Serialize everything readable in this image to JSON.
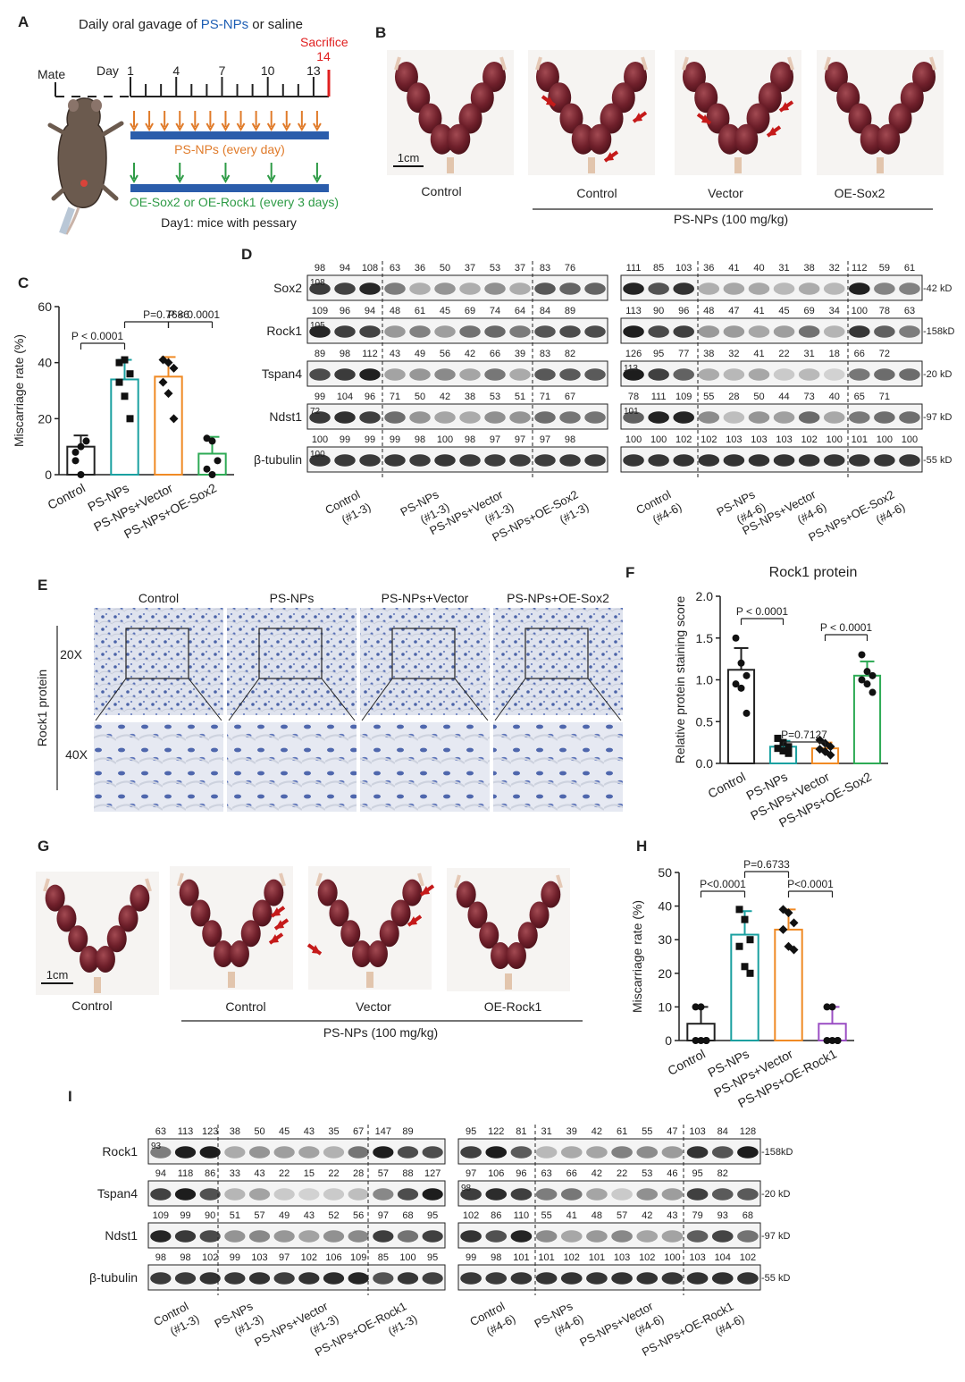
{
  "panel_letters": [
    "A",
    "B",
    "C",
    "D",
    "E",
    "F",
    "G",
    "H",
    "I"
  ],
  "panel_a": {
    "title_prefix": "Daily oral gavage of ",
    "title_drug": "PS-NPs",
    "title_suffix": " or saline",
    "sacrifice": "Sacrifice",
    "sacrifice_day": "14",
    "mate": "Mate",
    "day_label": "Day",
    "day_ticks": [
      "1",
      "4",
      "7",
      "10",
      "13"
    ],
    "bar1_label": "PS-NPs (every day)",
    "bar2_label": "OE-Sox2 or OE-Rock1 (every 3 days)",
    "note": "Day1: mice with pessary",
    "colors": {
      "drug": "#1f5fb4",
      "orange": "#e07b2a",
      "green": "#2e9b46",
      "red": "#e02020",
      "bar": "#2b5dab"
    }
  },
  "panel_b": {
    "scale_bar": "1cm",
    "labels": [
      "Control",
      "Control",
      "Vector",
      "OE-Sox2"
    ],
    "group_label": "PS-NPs (100 mg/kg)"
  },
  "panel_g": {
    "scale_bar": "1cm",
    "labels": [
      "Control",
      "Control",
      "Vector",
      "OE-Rock1"
    ],
    "group_label": "PS-NPs (100 mg/kg)"
  },
  "chart_data": [
    {
      "panel": "C",
      "type": "bar",
      "ylabel": "Miscarriage rate (%)",
      "categories": [
        "Control",
        "PS-NPs",
        "PS-NPs+Vector",
        "PS-NPs+OE-Sox2"
      ],
      "values": [
        10,
        34,
        35,
        7.5
      ],
      "errors": [
        4,
        7,
        7,
        6
      ],
      "ylim": [
        0,
        60
      ],
      "yticks": [
        0,
        20,
        40,
        60
      ],
      "colors": [
        "#222222",
        "#1aa0a0",
        "#f08a24",
        "#2eaa55"
      ],
      "points": [
        [
          8,
          10,
          12,
          5,
          0
        ],
        [
          40,
          41,
          36,
          33,
          28,
          20
        ],
        [
          41,
          40,
          38,
          33,
          29,
          20
        ],
        [
          13,
          12,
          5,
          2,
          0
        ]
      ],
      "comparisons": [
        {
          "a": 0,
          "b": 1,
          "label": "P < 0.0001"
        },
        {
          "a": 1,
          "b": 2,
          "label": "P=0.7686"
        },
        {
          "a": 2,
          "b": 3,
          "label": "P < 0.0001"
        }
      ]
    },
    {
      "panel": "F",
      "type": "bar",
      "title": "Rock1 protein",
      "ylabel": "Relative protein staining score",
      "categories": [
        "Control",
        "PS-NPs",
        "PS-NPs+Vector",
        "PS-NPs+OE-Sox2"
      ],
      "values": [
        1.12,
        0.2,
        0.18,
        1.05
      ],
      "errors": [
        0.26,
        0.07,
        0.07,
        0.17
      ],
      "ylim": [
        0,
        2.0
      ],
      "yticks": [
        0.0,
        0.5,
        1.0,
        1.5,
        2.0
      ],
      "colors": [
        "#222222",
        "#1aa0a0",
        "#f08a24",
        "#2eaa55"
      ],
      "points": [
        [
          1.5,
          1.2,
          1.05,
          0.95,
          0.9,
          0.6
        ],
        [
          0.3,
          0.25,
          0.2,
          0.18,
          0.15,
          0.12
        ],
        [
          0.28,
          0.24,
          0.2,
          0.17,
          0.14,
          0.1
        ],
        [
          1.3,
          1.1,
          1.05,
          1.0,
          0.95,
          0.85
        ]
      ],
      "comparisons": [
        {
          "a": 0,
          "b": 1,
          "label": "P < 0.0001"
        },
        {
          "a": 1,
          "b": 2,
          "label": "P=0.7127"
        },
        {
          "a": 2,
          "b": 3,
          "label": "P < 0.0001"
        }
      ]
    },
    {
      "panel": "H",
      "type": "bar",
      "ylabel": "Miscarriage rate (%)",
      "categories": [
        "Control",
        "PS-NPs",
        "PS-NPs+Vector",
        "PS-NPs+OE-Rock1"
      ],
      "values": [
        5,
        31.5,
        33,
        5
      ],
      "errors": [
        5,
        7,
        6,
        5
      ],
      "ylim": [
        0,
        50
      ],
      "yticks": [
        0,
        10,
        20,
        30,
        40,
        50
      ],
      "colors": [
        "#222222",
        "#1aa0a0",
        "#f08a24",
        "#9b4fc4"
      ],
      "points": [
        [
          10,
          10,
          0,
          0,
          0,
          0
        ],
        [
          39,
          36,
          30,
          28,
          22,
          20
        ],
        [
          39,
          38,
          35,
          33,
          28,
          27
        ],
        [
          10,
          10,
          0,
          0,
          0,
          0
        ]
      ],
      "comparisons": [
        {
          "a": 0,
          "b": 1,
          "label": "P<0.0001"
        },
        {
          "a": 1,
          "b": 2,
          "label": "P=0.6733"
        },
        {
          "a": 2,
          "b": 3,
          "label": "P<0.0001"
        }
      ]
    }
  ],
  "panel_d": {
    "rows": [
      {
        "name": "Sox2",
        "kd": "-42 kD",
        "left": [
          "98",
          "94",
          "108",
          "63",
          "36",
          "50",
          "37",
          "53",
          "37",
          "83",
          "76"
        ],
        "right": [
          "111",
          "85",
          "103",
          "36",
          "41",
          "40",
          "31",
          "38",
          "32",
          "112",
          "59",
          "61"
        ],
        "marker_left": "108",
        "marker_right": ""
      },
      {
        "name": "Rock1",
        "kd": "-158kD",
        "left": [
          "109",
          "96",
          "94",
          "48",
          "61",
          "45",
          "69",
          "74",
          "64",
          "84",
          "89"
        ],
        "right": [
          "113",
          "90",
          "96",
          "48",
          "47",
          "41",
          "45",
          "69",
          "34",
          "100",
          "78",
          "63"
        ],
        "marker_left": "105",
        "marker_right": ""
      },
      {
        "name": "Tspan4",
        "kd": "-20 kD",
        "left": [
          "89",
          "98",
          "112",
          "43",
          "49",
          "56",
          "42",
          "66",
          "39",
          "83",
          "82"
        ],
        "right": [
          "126",
          "95",
          "77",
          "38",
          "32",
          "41",
          "22",
          "31",
          "18",
          "66",
          "72"
        ],
        "marker_left": "",
        "marker_right": "113"
      },
      {
        "name": "Ndst1",
        "kd": "-97 kD",
        "left": [
          "99",
          "104",
          "96",
          "71",
          "50",
          "42",
          "38",
          "53",
          "51",
          "71",
          "67"
        ],
        "right": [
          "78",
          "111",
          "109",
          "55",
          "28",
          "50",
          "44",
          "73",
          "40",
          "65",
          "71"
        ],
        "marker_left": "72",
        "marker_right": "101"
      },
      {
        "name": "β-tubulin",
        "kd": "-55 kD",
        "left": [
          "100",
          "99",
          "99",
          "99",
          "98",
          "100",
          "98",
          "97",
          "97",
          "97",
          "98"
        ],
        "right": [
          "100",
          "100",
          "102",
          "102",
          "103",
          "103",
          "103",
          "102",
          "100",
          "101",
          "100",
          "100"
        ],
        "marker_left": "100",
        "marker_right": ""
      }
    ],
    "groups_left": [
      [
        "Control",
        "(#1-3)"
      ],
      [
        "PS-NPs",
        "(#1-3)"
      ],
      [
        "PS-NPs+Vector",
        "(#1-3)"
      ],
      [
        "PS-NPs+OE-Sox2",
        "(#1-3)"
      ]
    ],
    "groups_right": [
      [
        "Control",
        "(#4-6)"
      ],
      [
        "PS-NPs",
        "(#4-6)"
      ],
      [
        "PS-NPs+Vector",
        "(#4-6)"
      ],
      [
        "PS-NPs+OE-Sox2",
        "(#4-6)"
      ]
    ]
  },
  "panel_e": {
    "columns": [
      "Control",
      "PS-NPs",
      "PS-NPs+Vector",
      "PS-NPs+OE-Sox2"
    ],
    "row_labels": [
      "20X",
      "40X"
    ],
    "side_label": "Rock1 protein"
  },
  "panel_i": {
    "rows": [
      {
        "name": "Rock1",
        "kd": "-158kD",
        "left": [
          "63",
          "113",
          "123",
          "38",
          "50",
          "45",
          "43",
          "35",
          "67",
          "147",
          "89"
        ],
        "right": [
          "95",
          "122",
          "81",
          "31",
          "39",
          "42",
          "61",
          "55",
          "47",
          "103",
          "84",
          "128"
        ],
        "marker_left": "93",
        "marker_right": ""
      },
      {
        "name": "Tspan4",
        "kd": "-20 kD",
        "left": [
          "94",
          "118",
          "86",
          "33",
          "43",
          "22",
          "15",
          "22",
          "28",
          "57",
          "88",
          "127"
        ],
        "right": [
          "97",
          "106",
          "96",
          "63",
          "66",
          "42",
          "22",
          "53",
          "46",
          "95",
          "82"
        ],
        "marker_left": "",
        "marker_right": "98"
      },
      {
        "name": "Ndst1",
        "kd": "-97 kD",
        "left": [
          "109",
          "99",
          "90",
          "51",
          "57",
          "49",
          "43",
          "52",
          "56",
          "97",
          "68",
          "95"
        ],
        "right": [
          "102",
          "86",
          "110",
          "55",
          "41",
          "48",
          "57",
          "42",
          "43",
          "79",
          "93",
          "68"
        ],
        "marker_left": "",
        "marker_right": ""
      },
      {
        "name": "β-tubulin",
        "kd": "-55 kD",
        "left": [
          "98",
          "98",
          "102",
          "99",
          "103",
          "97",
          "102",
          "106",
          "109",
          "85",
          "100",
          "95"
        ],
        "right": [
          "99",
          "98",
          "101",
          "101",
          "102",
          "101",
          "103",
          "102",
          "100",
          "103",
          "104",
          "102"
        ],
        "marker_left": "",
        "marker_right": ""
      }
    ],
    "groups_left": [
      [
        "Control",
        "(#1-3)"
      ],
      [
        "PS-NPs",
        "(#1-3)"
      ],
      [
        "PS-NPs+Vector",
        "(#1-3)"
      ],
      [
        "PS-NPs+OE-Rock1",
        "(#1-3)"
      ]
    ],
    "groups_right": [
      [
        "Control",
        "(#4-6)"
      ],
      [
        "PS-NPs",
        "(#4-6)"
      ],
      [
        "PS-NPs+Vector",
        "(#4-6)"
      ],
      [
        "PS-NPs+OE-Rock1",
        "(#4-6)"
      ]
    ]
  }
}
